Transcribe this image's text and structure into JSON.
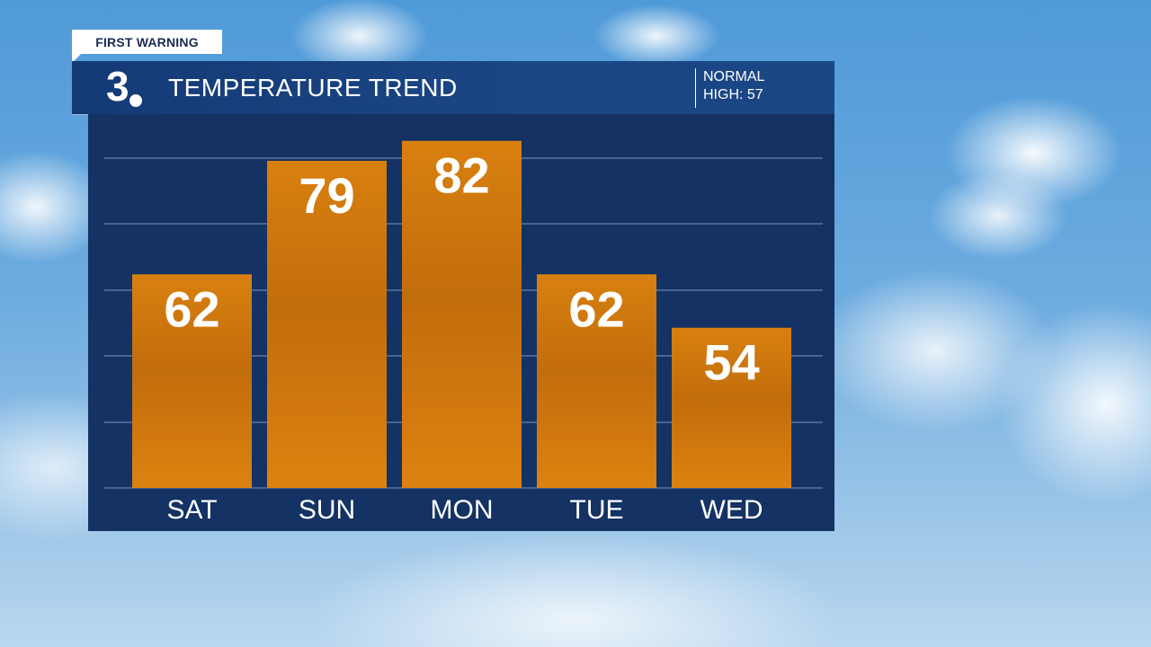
{
  "badge": {
    "label": "FIRST WARNING"
  },
  "header": {
    "logo_text": "3",
    "title": "TEMPERATURE TREND",
    "normal_line1": "NORMAL",
    "normal_line2": "HIGH: 57"
  },
  "colors": {
    "bar": "#d67a10",
    "panel": "#143263",
    "header": "#1b4685",
    "gridline": "#4a6491"
  },
  "chart_data": {
    "type": "bar",
    "title": "TEMPERATURE TREND",
    "categories": [
      "SAT",
      "SUN",
      "MON",
      "TUE",
      "WED"
    ],
    "values": [
      62,
      79,
      82,
      62,
      54
    ],
    "ylim": [
      30,
      86
    ],
    "grid": true
  }
}
